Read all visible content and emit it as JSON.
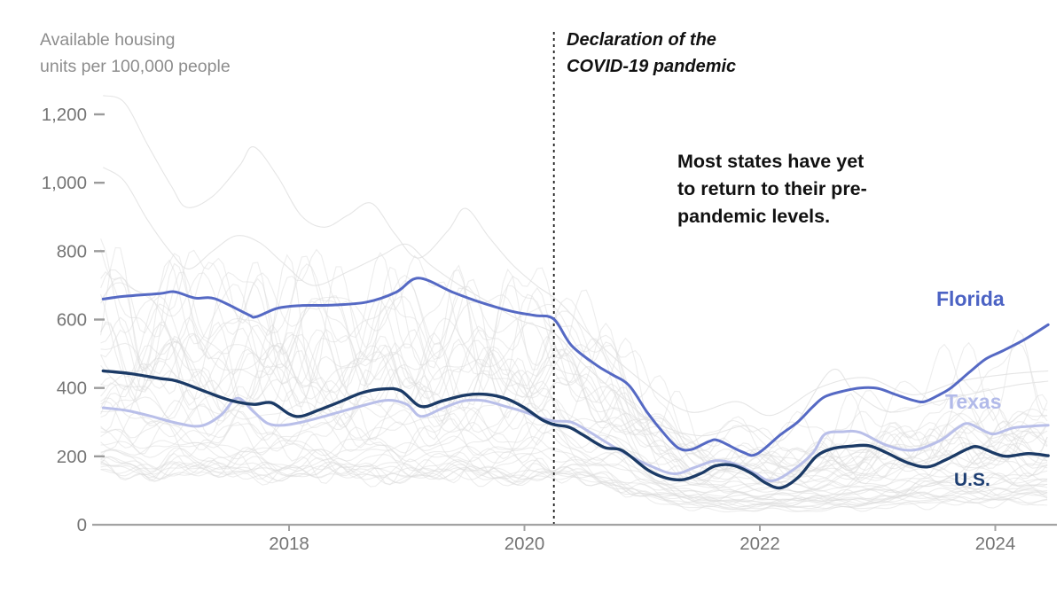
{
  "chart_data": {
    "type": "line",
    "title_lines": [
      "Available housing",
      "units per 100,000 people"
    ],
    "x_axis": {
      "range": [
        2016.4,
        2024.45
      ],
      "ticks": [
        2018,
        2020,
        2022,
        2024
      ],
      "tick_labels": [
        "2018",
        "2020",
        "2022",
        "2024"
      ]
    },
    "y_axis": {
      "range": [
        0,
        1290
      ],
      "ticks": [
        0,
        200,
        400,
        600,
        800,
        1000,
        1200
      ],
      "tick_labels": [
        "0",
        "200",
        "400",
        "600",
        "800",
        "1,000",
        "1,200"
      ]
    },
    "grid": false,
    "legend_position": "inline-labels",
    "annotations": {
      "pandemic_line_x": 2020.25,
      "pandemic_label_lines": [
        "Declaration of the",
        "COVID-19 pandemic"
      ],
      "note_lines": [
        "Most states have yet",
        "to return to their pre-",
        "pandemic levels."
      ]
    },
    "series": [
      {
        "name": "Florida",
        "color": "#5569c4",
        "label_color": "#4c63c4",
        "width": 3,
        "points": [
          [
            2016.42,
            660
          ],
          [
            2016.6,
            668
          ],
          [
            2016.9,
            676
          ],
          [
            2017.03,
            681
          ],
          [
            2017.2,
            663
          ],
          [
            2017.37,
            661
          ],
          [
            2017.65,
            615
          ],
          [
            2017.72,
            608
          ],
          [
            2017.9,
            633
          ],
          [
            2018.1,
            641
          ],
          [
            2018.35,
            642
          ],
          [
            2018.66,
            651
          ],
          [
            2018.91,
            680
          ],
          [
            2019.1,
            721
          ],
          [
            2019.39,
            680
          ],
          [
            2019.63,
            650
          ],
          [
            2019.89,
            624
          ],
          [
            2020.09,
            612
          ],
          [
            2020.25,
            601
          ],
          [
            2020.4,
            524
          ],
          [
            2020.61,
            467
          ],
          [
            2020.74,
            440
          ],
          [
            2020.89,
            407
          ],
          [
            2021.04,
            330
          ],
          [
            2021.19,
            265
          ],
          [
            2021.31,
            224
          ],
          [
            2021.42,
            220
          ],
          [
            2021.57,
            244
          ],
          [
            2021.65,
            246
          ],
          [
            2021.85,
            213
          ],
          [
            2021.97,
            206
          ],
          [
            2022.17,
            262
          ],
          [
            2022.32,
            300
          ],
          [
            2022.45,
            345
          ],
          [
            2022.55,
            374
          ],
          [
            2022.7,
            390
          ],
          [
            2022.85,
            400
          ],
          [
            2023.0,
            399
          ],
          [
            2023.15,
            381
          ],
          [
            2023.3,
            364
          ],
          [
            2023.4,
            360
          ],
          [
            2023.53,
            381
          ],
          [
            2023.63,
            402
          ],
          [
            2023.78,
            446
          ],
          [
            2023.92,
            485
          ],
          [
            2024.06,
            508
          ],
          [
            2024.25,
            542
          ],
          [
            2024.45,
            585
          ]
        ]
      },
      {
        "name": "Texas",
        "color": "#b9bfe9",
        "label_color": "#b2bae9",
        "width": 3,
        "points": [
          [
            2016.42,
            342
          ],
          [
            2016.62,
            334
          ],
          [
            2016.82,
            318
          ],
          [
            2017.05,
            297
          ],
          [
            2017.25,
            289
          ],
          [
            2017.42,
            320
          ],
          [
            2017.56,
            370
          ],
          [
            2017.7,
            330
          ],
          [
            2017.82,
            296
          ],
          [
            2017.95,
            291
          ],
          [
            2018.12,
            301
          ],
          [
            2018.35,
            322
          ],
          [
            2018.6,
            346
          ],
          [
            2018.83,
            364
          ],
          [
            2019.0,
            352
          ],
          [
            2019.12,
            317
          ],
          [
            2019.3,
            340
          ],
          [
            2019.48,
            362
          ],
          [
            2019.65,
            363
          ],
          [
            2019.85,
            345
          ],
          [
            2020.0,
            330
          ],
          [
            2020.15,
            311
          ],
          [
            2020.26,
            303
          ],
          [
            2020.4,
            300
          ],
          [
            2020.55,
            272
          ],
          [
            2020.7,
            240
          ],
          [
            2020.85,
            210
          ],
          [
            2021.05,
            175
          ],
          [
            2021.27,
            149
          ],
          [
            2021.45,
            168
          ],
          [
            2021.62,
            187
          ],
          [
            2021.77,
            180
          ],
          [
            2021.95,
            152
          ],
          [
            2022.1,
            128
          ],
          [
            2022.28,
            160
          ],
          [
            2022.45,
            210
          ],
          [
            2022.55,
            264
          ],
          [
            2022.7,
            272
          ],
          [
            2022.85,
            270
          ],
          [
            2023.08,
            232
          ],
          [
            2023.3,
            218
          ],
          [
            2023.53,
            246
          ],
          [
            2023.68,
            283
          ],
          [
            2023.77,
            296
          ],
          [
            2023.92,
            272
          ],
          [
            2024.0,
            266
          ],
          [
            2024.15,
            283
          ],
          [
            2024.3,
            288
          ],
          [
            2024.45,
            291
          ]
        ]
      },
      {
        "name": "U.S.",
        "color": "#1b3a66",
        "label_color": "#1d3e72",
        "width": 3.4,
        "points": [
          [
            2016.42,
            450
          ],
          [
            2016.65,
            442
          ],
          [
            2016.9,
            428
          ],
          [
            2017.05,
            420
          ],
          [
            2017.3,
            388
          ],
          [
            2017.5,
            364
          ],
          [
            2017.7,
            352
          ],
          [
            2017.85,
            357
          ],
          [
            2018.0,
            324
          ],
          [
            2018.1,
            317
          ],
          [
            2018.25,
            335
          ],
          [
            2018.45,
            362
          ],
          [
            2018.62,
            386
          ],
          [
            2018.8,
            397
          ],
          [
            2018.95,
            392
          ],
          [
            2019.12,
            346
          ],
          [
            2019.3,
            362
          ],
          [
            2019.5,
            379
          ],
          [
            2019.68,
            381
          ],
          [
            2019.85,
            368
          ],
          [
            2020.0,
            342
          ],
          [
            2020.15,
            307
          ],
          [
            2020.25,
            293
          ],
          [
            2020.38,
            285
          ],
          [
            2020.5,
            262
          ],
          [
            2020.68,
            226
          ],
          [
            2020.83,
            217
          ],
          [
            2021.05,
            160
          ],
          [
            2021.2,
            137
          ],
          [
            2021.35,
            132
          ],
          [
            2021.5,
            150
          ],
          [
            2021.62,
            172
          ],
          [
            2021.77,
            174
          ],
          [
            2021.92,
            152
          ],
          [
            2022.05,
            122
          ],
          [
            2022.18,
            108
          ],
          [
            2022.33,
            140
          ],
          [
            2022.48,
            200
          ],
          [
            2022.62,
            223
          ],
          [
            2022.78,
            230
          ],
          [
            2022.93,
            231
          ],
          [
            2023.08,
            210
          ],
          [
            2023.25,
            182
          ],
          [
            2023.42,
            169
          ],
          [
            2023.58,
            190
          ],
          [
            2023.76,
            221
          ],
          [
            2023.85,
            228
          ],
          [
            2024.0,
            208
          ],
          [
            2024.1,
            200
          ],
          [
            2024.28,
            208
          ],
          [
            2024.45,
            202
          ]
        ]
      }
    ],
    "background_series": {
      "description": "unlabeled gray lines, one per remaining state, values approximated",
      "color": "#dcdcdc",
      "opacity": 0.5,
      "width": 1.1,
      "explicit": [
        {
          "name": "state-high-1",
          "points": [
            [
              2016.42,
              1255
            ],
            [
              2016.6,
              1235
            ],
            [
              2016.8,
              1110
            ],
            [
              2017.0,
              990
            ],
            [
              2017.13,
              928
            ],
            [
              2017.35,
              960
            ],
            [
              2017.58,
              1050
            ],
            [
              2017.7,
              1105
            ],
            [
              2017.9,
              1020
            ],
            [
              2018.1,
              905
            ],
            [
              2018.3,
              870
            ],
            [
              2018.5,
              905
            ],
            [
              2018.7,
              940
            ],
            [
              2018.9,
              850
            ],
            [
              2019.1,
              780
            ],
            [
              2019.35,
              860
            ],
            [
              2019.5,
              925
            ],
            [
              2019.7,
              840
            ],
            [
              2019.9,
              760
            ],
            [
              2020.1,
              700
            ],
            [
              2020.3,
              650
            ],
            [
              2020.6,
              540
            ],
            [
              2021.0,
              420
            ],
            [
              2021.4,
              330
            ],
            [
              2021.8,
              360
            ],
            [
              2022.1,
              320
            ],
            [
              2022.5,
              400
            ],
            [
              2022.9,
              430
            ],
            [
              2023.3,
              380
            ],
            [
              2023.7,
              420
            ],
            [
              2024.1,
              440
            ],
            [
              2024.45,
              450
            ]
          ]
        },
        {
          "name": "state-high-2",
          "points": [
            [
              2016.42,
              1045
            ],
            [
              2016.6,
              1005
            ],
            [
              2016.8,
              890
            ],
            [
              2017.0,
              795
            ],
            [
              2017.15,
              748
            ],
            [
              2017.35,
              800
            ],
            [
              2017.55,
              845
            ],
            [
              2017.75,
              825
            ],
            [
              2017.95,
              765
            ],
            [
              2018.2,
              700
            ],
            [
              2018.5,
              740
            ],
            [
              2018.8,
              790
            ],
            [
              2019.0,
              820
            ],
            [
              2019.2,
              760
            ],
            [
              2019.45,
              700
            ],
            [
              2019.7,
              650
            ],
            [
              2019.95,
              600
            ],
            [
              2020.25,
              560
            ],
            [
              2020.5,
              470
            ],
            [
              2020.8,
              380
            ],
            [
              2021.1,
              300
            ],
            [
              2021.5,
              260
            ],
            [
              2021.9,
              290
            ],
            [
              2022.2,
              250
            ],
            [
              2022.6,
              450
            ],
            [
              2022.8,
              390
            ],
            [
              2023.1,
              330
            ],
            [
              2023.5,
              360
            ],
            [
              2023.9,
              390
            ],
            [
              2024.2,
              410
            ],
            [
              2024.45,
              420
            ]
          ]
        }
      ],
      "procedural": {
        "count": 43,
        "seed": 11,
        "base_range": [
          160,
          720
        ],
        "drop_range": [
          0.3,
          0.55
        ]
      }
    },
    "colors": {
      "axis": "#a3a3a3",
      "tick_text": "#757575",
      "title_text": "#8d8d8d",
      "dashed_rule": "#1a1a1a"
    }
  }
}
